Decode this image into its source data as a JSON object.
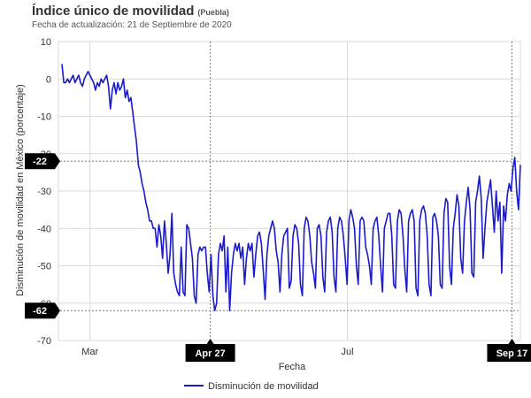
{
  "header": {
    "title": "Índice único de movilidad",
    "subtitle": "(Puebla)",
    "update_text": "Fecha de actualización: 21 de Septiembre de 2020"
  },
  "chart_data": {
    "type": "line",
    "title": "Índice único de movilidad",
    "subtitle": "(Puebla)",
    "xlabel": "Fecha",
    "ylabel": "Disminución de movilidad en México (porcentaje)",
    "ylim": [
      -70,
      10
    ],
    "yticks": [
      10,
      0,
      -10,
      -20,
      -30,
      -40,
      -50,
      -60,
      -70
    ],
    "xticks": [
      "Mar",
      "Jul"
    ],
    "x_start": "2020-02-15",
    "x_end": "2020-09-21",
    "grid": true,
    "legend_position": "bottom",
    "highlight_lines": {
      "x": [
        {
          "date": "2020-04-27",
          "label": "Apr 27"
        },
        {
          "date": "2020-09-17",
          "label": "Sep 17"
        }
      ],
      "y": [
        {
          "value": -22,
          "label": "-22"
        },
        {
          "value": -62,
          "label": "-62"
        }
      ]
    },
    "series": [
      {
        "name": "Disminución de movilidad",
        "color": "#1a1acc",
        "values": [
          4,
          -1,
          -1,
          0,
          -1,
          0,
          1,
          -1,
          0,
          1,
          -1,
          -2,
          0,
          1,
          2,
          1,
          0,
          -1,
          -3,
          -1,
          -2,
          0,
          -1,
          0,
          1,
          -2,
          -8,
          -3,
          -1,
          -4,
          -1,
          -3,
          -2,
          0,
          -5,
          -3,
          -6,
          -5,
          -9,
          -13,
          -17,
          -23,
          -25,
          -28,
          -30,
          -33,
          -35,
          -38,
          -38,
          -40,
          -40,
          -45,
          -39,
          -42,
          -48,
          -38,
          -44,
          -52,
          -47,
          -36,
          -52,
          -55,
          -57,
          -58,
          -45,
          -57,
          -58,
          -39,
          -40,
          -44,
          -48,
          -58,
          -60,
          -47,
          -45,
          -46,
          -45,
          -45,
          -52,
          -57,
          -47,
          -58,
          -62,
          -60,
          -47,
          -44,
          -46,
          -42,
          -57,
          -45,
          -62,
          -52,
          -47,
          -44,
          -46,
          -44,
          -48,
          -45,
          -55,
          -48,
          -44,
          -46,
          -44,
          -53,
          -47,
          -42,
          -41,
          -44,
          -51,
          -59,
          -47,
          -42,
          -40,
          -38,
          -40,
          -46,
          -49,
          -57,
          -47,
          -42,
          -41,
          -40,
          -56,
          -54,
          -42,
          -39,
          -40,
          -44,
          -55,
          -58,
          -40,
          -37,
          -38,
          -42,
          -49,
          -52,
          -56,
          -40,
          -39,
          -42,
          -53,
          -57,
          -41,
          -38,
          -37,
          -41,
          -53,
          -57,
          -40,
          -37,
          -38,
          -42,
          -48,
          -55,
          -38,
          -35,
          -37,
          -40,
          -50,
          -55,
          -38,
          -37,
          -38,
          -45,
          -47,
          -50,
          -55,
          -40,
          -38,
          -37,
          -42,
          -50,
          -57,
          -40,
          -38,
          -36,
          -36,
          -42,
          -55,
          -56,
          -38,
          -35,
          -36,
          -42,
          -51,
          -57,
          -38,
          -36,
          -35,
          -38,
          -56,
          -58,
          -38,
          -35,
          -34,
          -36,
          -42,
          -55,
          -58,
          -37,
          -36,
          -38,
          -42,
          -55,
          -56,
          -36,
          -32,
          -33,
          -50,
          -55,
          -40,
          -36,
          -31,
          -34,
          -48,
          -52,
          -38,
          -33,
          -29,
          -35,
          -52,
          -53,
          -33,
          -30,
          -26,
          -32,
          -48,
          -40,
          -33,
          -30,
          -27,
          -34,
          -41,
          -30,
          -38,
          -33,
          -52,
          -34,
          -38,
          -31,
          -28,
          -30,
          -24,
          -21,
          -30,
          -35,
          -23
        ]
      }
    ]
  },
  "legend": {
    "label": "Disminución de movilidad"
  }
}
